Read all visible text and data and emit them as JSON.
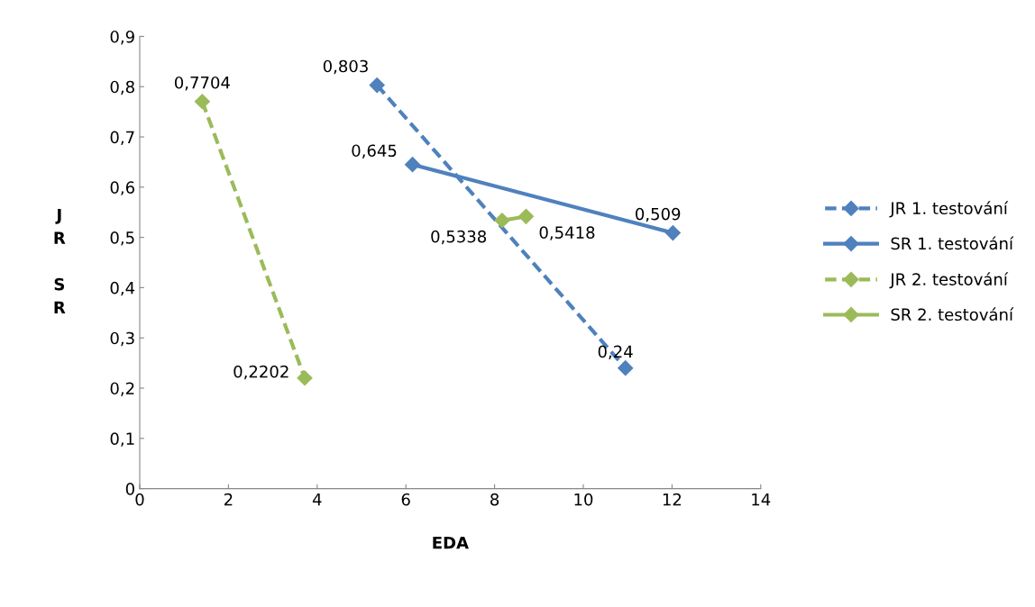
{
  "chart_data": {
    "type": "line",
    "xlabel": "EDA",
    "ylabel": "JR SR",
    "xlim": [
      0,
      14
    ],
    "xticks": [
      0,
      2,
      4,
      6,
      8,
      10,
      12,
      14
    ],
    "ylim": [
      0,
      0.9
    ],
    "yticks": [
      {
        "value": 0,
        "label": "0"
      },
      {
        "value": 0.1,
        "label": "0,1"
      },
      {
        "value": 0.2,
        "label": "0,2"
      },
      {
        "value": 0.3,
        "label": "0,3"
      },
      {
        "value": 0.4,
        "label": "0,4"
      },
      {
        "value": 0.5,
        "label": "0,5"
      },
      {
        "value": 0.6,
        "label": "0,6"
      },
      {
        "value": 0.7,
        "label": "0,7"
      },
      {
        "value": 0.8,
        "label": "0,8"
      },
      {
        "value": 0.9,
        "label": "0,9"
      }
    ],
    "grid": false,
    "legend": "right",
    "marker": "diamond",
    "series": [
      {
        "name": "JR 1. testování",
        "color": "#4f81bd",
        "line_style": "dashed",
        "x": [
          5.35,
          10.95
        ],
        "values": [
          0.803,
          0.24
        ],
        "value_labels": [
          "0,803",
          "0,24"
        ]
      },
      {
        "name": "SR 1. testování",
        "color": "#4f81bd",
        "line_style": "solid",
        "x": [
          6.15,
          12.02
        ],
        "values": [
          0.645,
          0.509
        ],
        "value_labels": [
          "0,645",
          "0,509"
        ]
      },
      {
        "name": "JR 2. testování",
        "color": "#9bbb59",
        "line_style": "dashed",
        "x": [
          1.41,
          3.72
        ],
        "values": [
          0.7704,
          0.2202
        ],
        "value_labels": [
          "0,7704",
          "0,2202"
        ]
      },
      {
        "name": "SR 2. testování",
        "color": "#9bbb59",
        "line_style": "solid",
        "x": [
          8.17,
          8.71
        ],
        "values": [
          0.5338,
          0.5418
        ],
        "value_labels": [
          "0,5338",
          "0,5418"
        ]
      }
    ]
  }
}
